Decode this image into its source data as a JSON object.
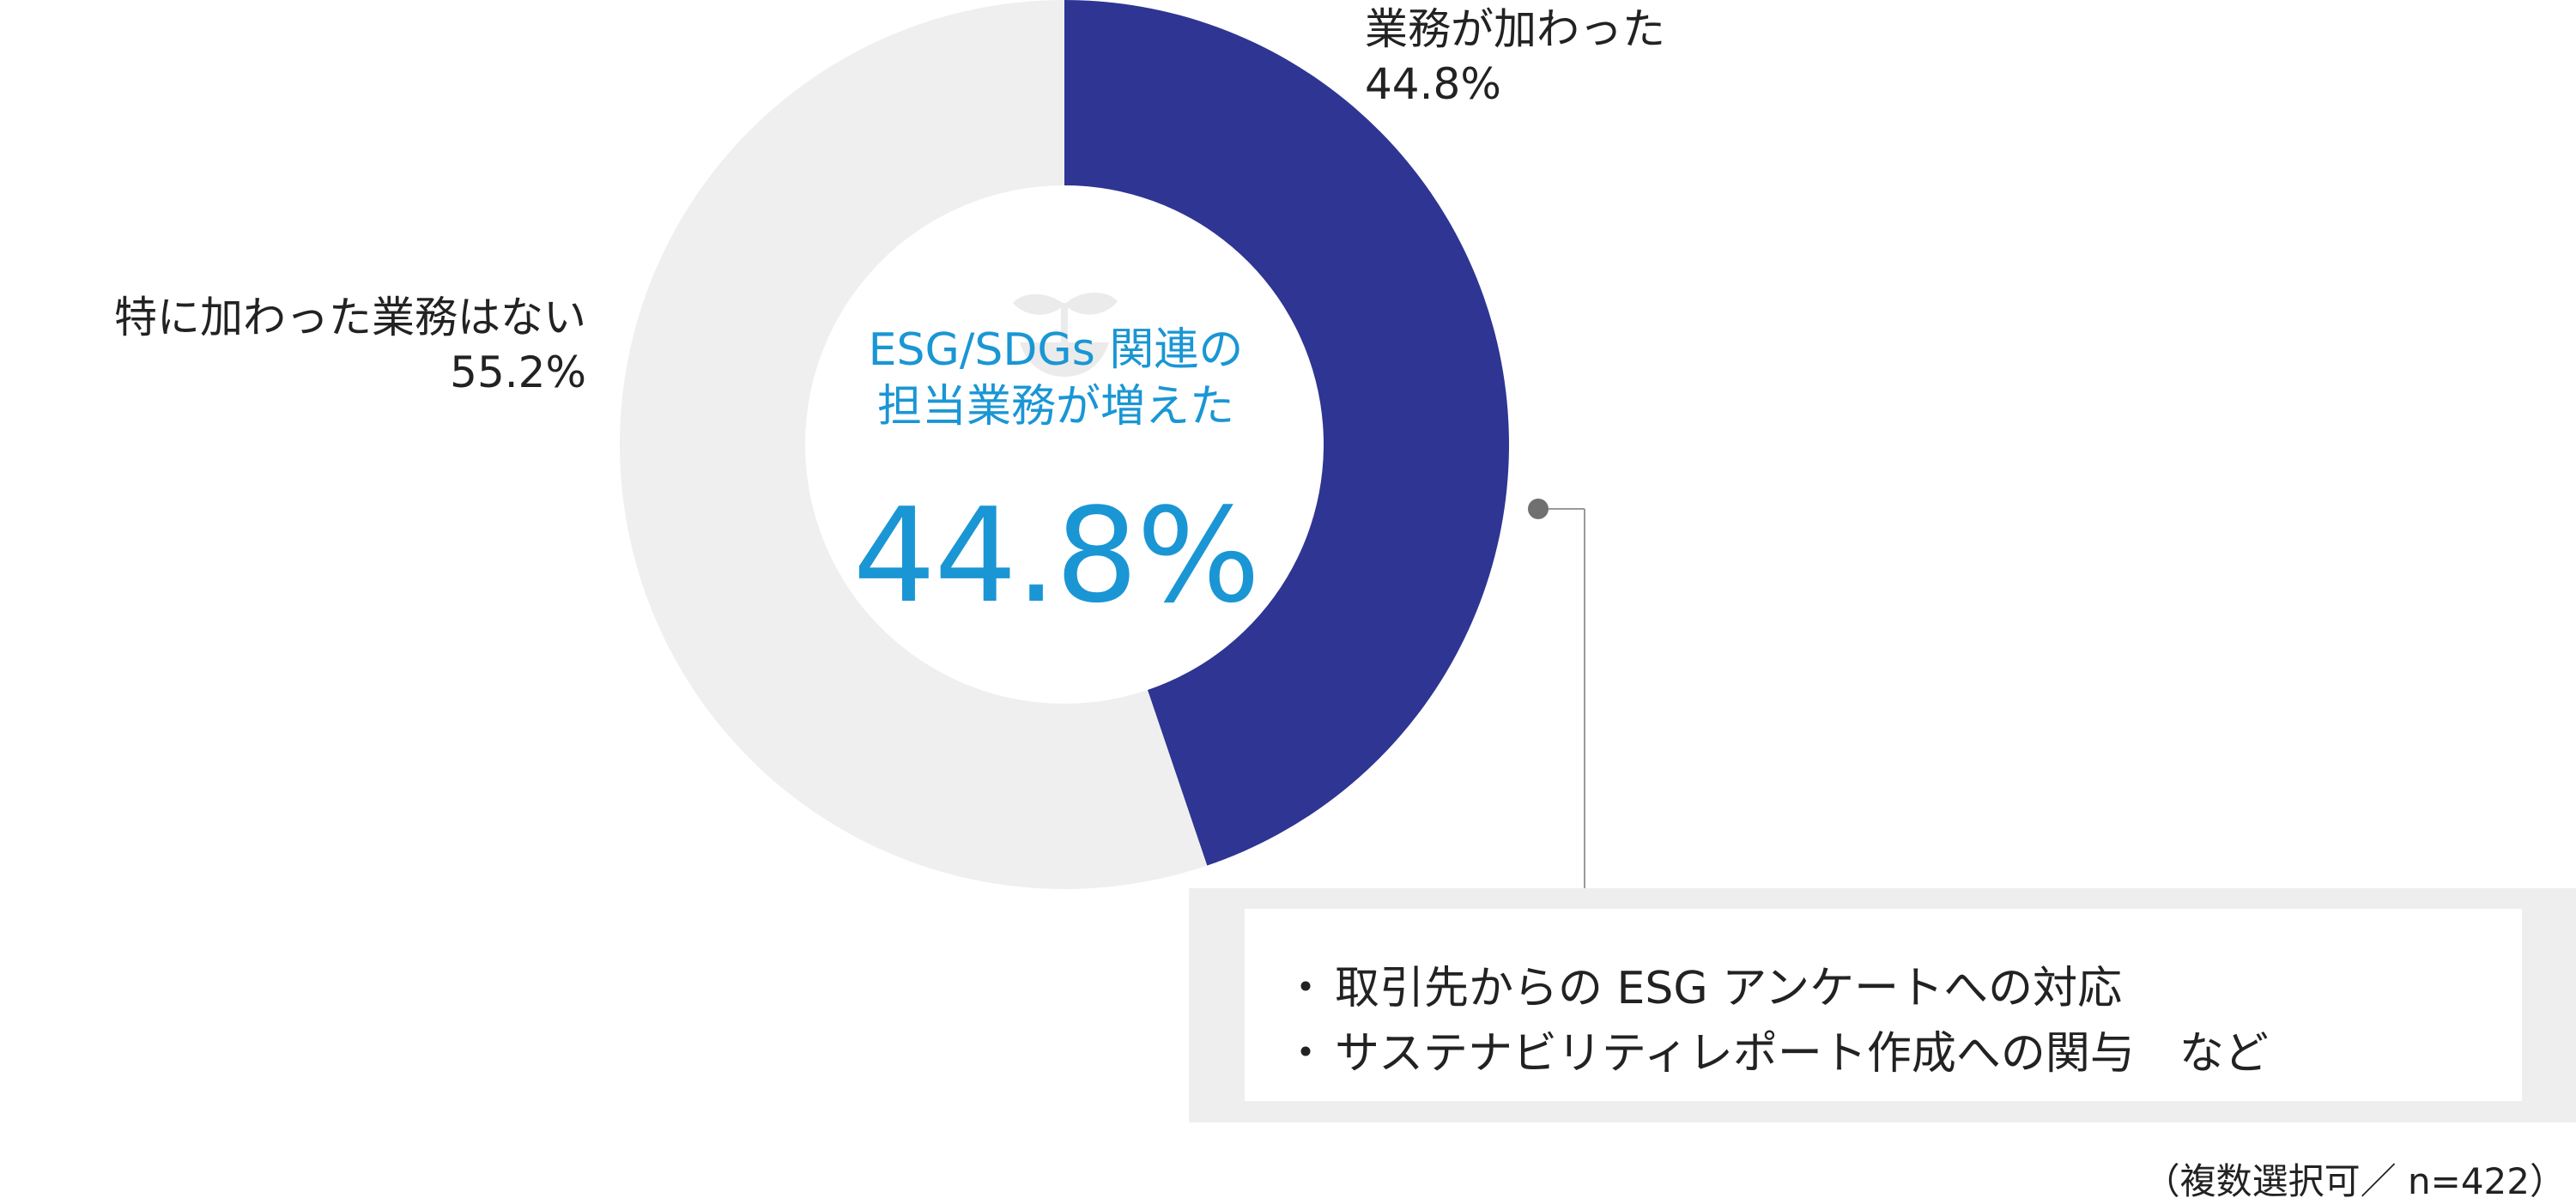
{
  "chart_data": {
    "type": "pie",
    "subtype": "donut",
    "slices": [
      {
        "label": "業務が加わった",
        "value": 44.8,
        "display": "44.8%",
        "color": "#2e3592"
      },
      {
        "label": "特に加わった業務はない",
        "value": 55.2,
        "display": "55.2%",
        "color": "#efefef"
      }
    ],
    "center_title_lines": [
      "ESG/SDGs 関連の",
      "担当業務が増えた"
    ],
    "center_value": "44.8%",
    "center_color": "#1a96d4"
  },
  "callout": {
    "items": [
      "取引先からの ESG アンケートへの対応",
      "サステナビリティレポート作成への関与　など"
    ]
  },
  "note": "（複数選択可／ n=422）",
  "icon": "sprout-icon"
}
